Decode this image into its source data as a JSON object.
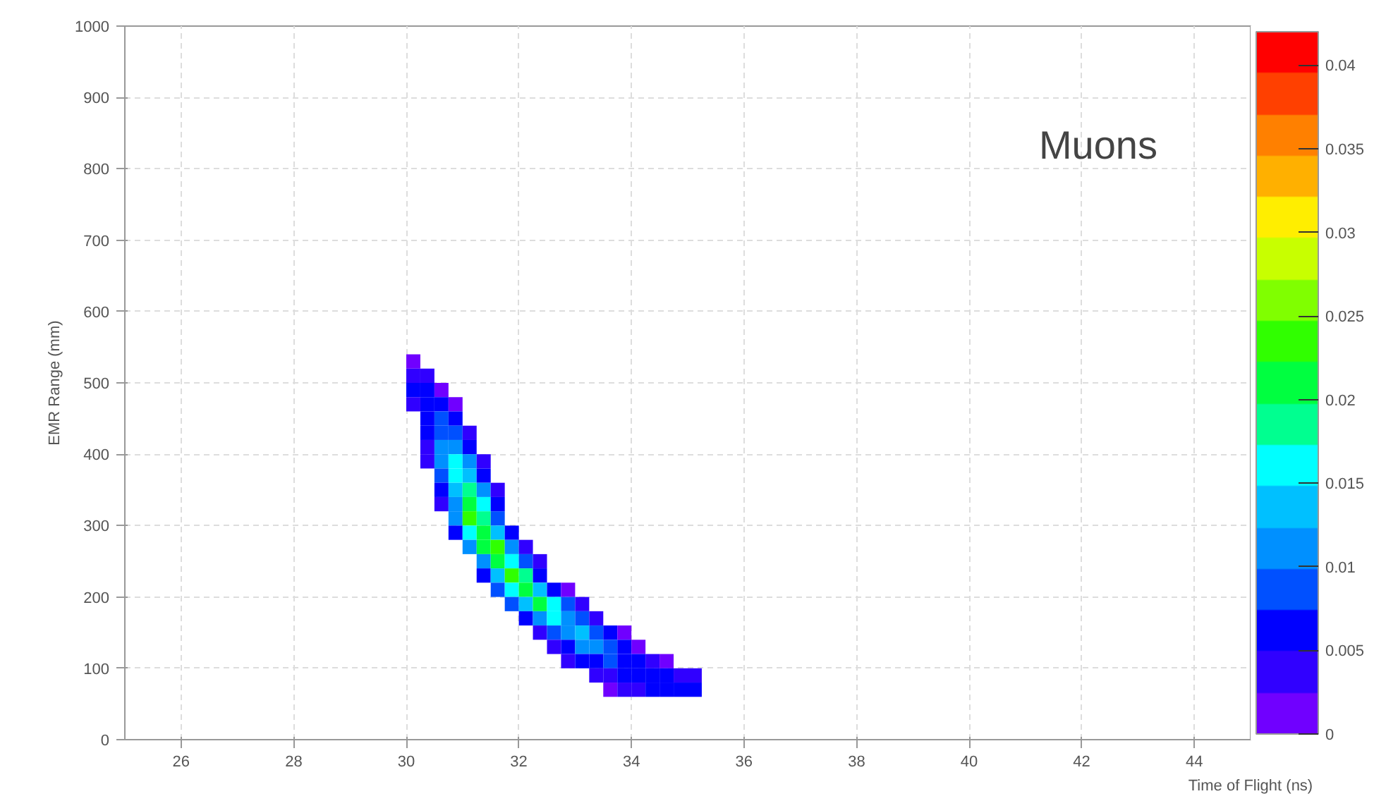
{
  "chart_data": {
    "type": "scatter",
    "marker": "square",
    "xlabel": "Time of Flight (ns)",
    "ylabel": "EMR Range (mm)",
    "annotations": [
      "Muons"
    ],
    "xlim": [
      25,
      45
    ],
    "xticks": [
      26,
      28,
      30,
      32,
      34,
      36,
      38,
      40,
      42,
      44
    ],
    "ylim": [
      0,
      1000
    ],
    "yticks": [
      0,
      100,
      200,
      300,
      400,
      500,
      600,
      700,
      800,
      900,
      1000
    ],
    "clim": [
      0,
      0.042
    ],
    "cticks": [
      0,
      0.005,
      0.01,
      0.015,
      0.02,
      0.025,
      0.03,
      0.035,
      0.04
    ],
    "grid": true,
    "series": [
      {
        "x": [
          30.125,
          30.125,
          30.375,
          30.125,
          30.375,
          30.625,
          30.125,
          30.375,
          30.625,
          30.875,
          30.375,
          30.625,
          30.875,
          30.375,
          30.625,
          30.875,
          31.125,
          30.375,
          30.625,
          30.875,
          31.125,
          30.375,
          30.625,
          30.875,
          31.125,
          31.375,
          30.625,
          30.875,
          31.125,
          31.375,
          30.625,
          30.875,
          31.125,
          31.375,
          31.625,
          30.625,
          30.875,
          31.125,
          31.375,
          31.625,
          30.875,
          31.125,
          31.375,
          31.625,
          30.875,
          31.125,
          31.375,
          31.625,
          31.875,
          31.125,
          31.375,
          31.625,
          31.875,
          32.125,
          31.375,
          31.625,
          31.875,
          32.125,
          32.375,
          31.375,
          31.625,
          31.875,
          32.125,
          32.375,
          31.625,
          31.875,
          32.125,
          32.375,
          32.625,
          32.875,
          31.875,
          32.125,
          32.375,
          32.625,
          32.875,
          33.125,
          32.125,
          32.375,
          32.625,
          32.875,
          33.125,
          33.375,
          32.375,
          32.625,
          32.875,
          33.125,
          33.375,
          33.625,
          33.875,
          32.625,
          32.875,
          33.125,
          33.375,
          33.625,
          33.875,
          34.125,
          32.875,
          33.125,
          33.375,
          33.625,
          33.875,
          34.125,
          34.375,
          34.625,
          33.375,
          33.625,
          33.875,
          34.125,
          34.375,
          34.625,
          34.875,
          35.125,
          33.625,
          33.875,
          34.125,
          34.375,
          34.625,
          34.875,
          35.125
        ],
        "values": [
          530,
          510,
          510,
          490,
          490,
          490,
          470,
          470,
          470,
          470,
          450,
          450,
          450,
          430,
          430,
          430,
          430,
          410,
          410,
          410,
          410,
          390,
          390,
          390,
          390,
          390,
          370,
          370,
          370,
          370,
          350,
          350,
          350,
          350,
          350,
          330,
          330,
          330,
          330,
          330,
          310,
          310,
          310,
          310,
          290,
          290,
          290,
          290,
          290,
          270,
          270,
          270,
          270,
          270,
          250,
          250,
          250,
          250,
          250,
          230,
          230,
          230,
          230,
          230,
          210,
          210,
          210,
          210,
          210,
          210,
          190,
          190,
          190,
          190,
          190,
          190,
          170,
          170,
          170,
          170,
          170,
          170,
          150,
          150,
          150,
          150,
          150,
          150,
          150,
          130,
          130,
          130,
          130,
          130,
          130,
          130,
          110,
          110,
          110,
          110,
          110,
          110,
          110,
          110,
          90,
          90,
          90,
          90,
          90,
          90,
          90,
          90,
          70,
          70,
          70,
          70,
          70,
          70,
          70
        ],
        "cvalues": [
          0.002,
          0.004,
          0.003,
          0.005,
          0.006,
          0.002,
          0.004,
          0.007,
          0.005,
          0.002,
          0.006,
          0.008,
          0.005,
          0.005,
          0.009,
          0.008,
          0.003,
          0.004,
          0.01,
          0.012,
          0.006,
          0.003,
          0.01,
          0.016,
          0.011,
          0.004,
          0.008,
          0.015,
          0.014,
          0.005,
          0.006,
          0.014,
          0.018,
          0.01,
          0.003,
          0.004,
          0.012,
          0.022,
          0.016,
          0.006,
          0.01,
          0.024,
          0.018,
          0.008,
          0.006,
          0.016,
          0.022,
          0.014,
          0.005,
          0.01,
          0.02,
          0.024,
          0.012,
          0.004,
          0.012,
          0.022,
          0.016,
          0.008,
          0.003,
          0.006,
          0.014,
          0.024,
          0.018,
          0.007,
          0.008,
          0.016,
          0.02,
          0.014,
          0.006,
          0.002,
          0.008,
          0.014,
          0.022,
          0.016,
          0.008,
          0.003,
          0.005,
          0.01,
          0.016,
          0.012,
          0.008,
          0.004,
          0.004,
          0.008,
          0.012,
          0.013,
          0.009,
          0.005,
          0.002,
          0.004,
          0.007,
          0.01,
          0.011,
          0.008,
          0.005,
          0.002,
          0.003,
          0.005,
          0.007,
          0.008,
          0.007,
          0.006,
          0.004,
          0.002,
          0.003,
          0.004,
          0.006,
          0.007,
          0.006,
          0.005,
          0.004,
          0.003,
          0.002,
          0.003,
          0.004,
          0.005,
          0.006,
          0.007,
          0.006
        ]
      }
    ]
  }
}
